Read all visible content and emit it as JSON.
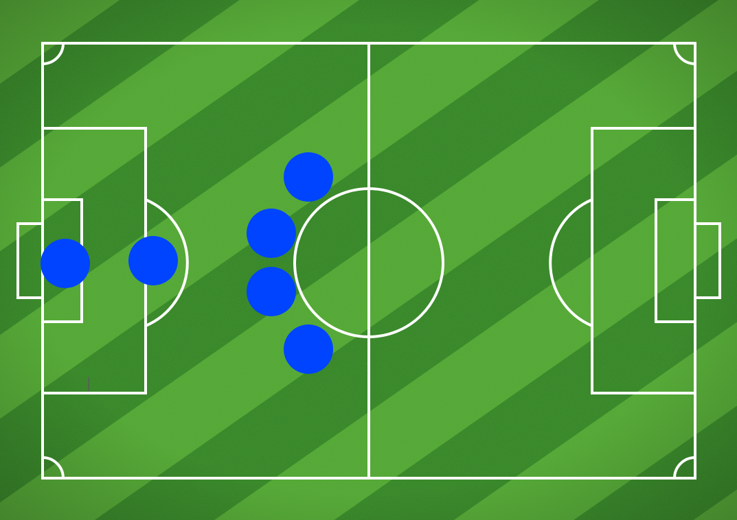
{
  "colors": {
    "grass_light": "#55ad35",
    "grass_dark": "#2f8124",
    "line": "#ffffff",
    "player": "#0044ff"
  },
  "players": [
    {
      "role": "goalkeeper"
    },
    {
      "role": "defender"
    },
    {
      "role": "midfielder"
    },
    {
      "role": "midfielder"
    },
    {
      "role": "midfielder"
    },
    {
      "role": "midfielder"
    }
  ]
}
